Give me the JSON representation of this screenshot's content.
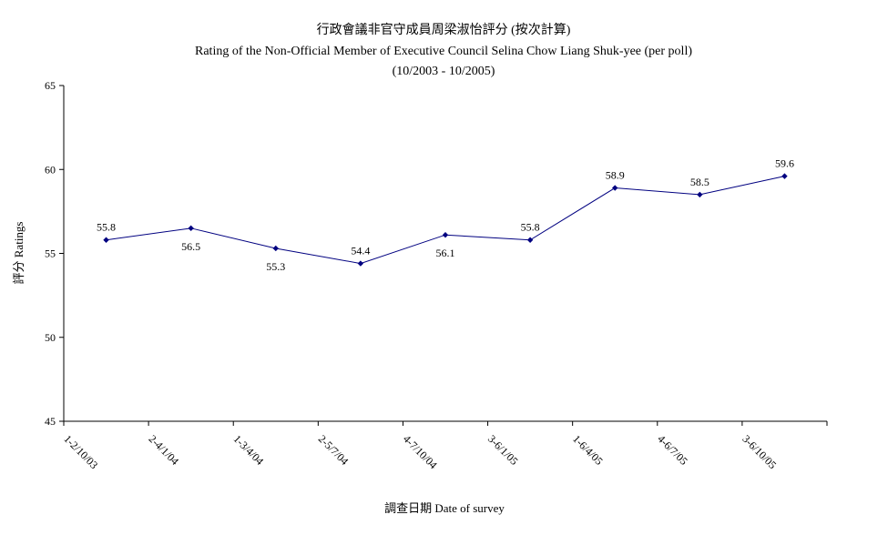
{
  "chart_data": {
    "type": "line",
    "title_lines": [
      "行政會議非官守成員周梁淑怡評分 (按次計算)",
      "Rating of the Non-Official Member of Executive Council Selina Chow Liang Shuk-yee  (per poll)",
      "(10/2003 - 10/2005)"
    ],
    "xlabel": "調查日期 Date of survey",
    "ylabel": "評分 Ratings",
    "ylim": [
      45,
      65
    ],
    "yticks": [
      45,
      50,
      55,
      60,
      65
    ],
    "categories": [
      "1-2/10/03",
      "2-4/1/04",
      "1-3/4/04",
      "2-5/7/04",
      "4-7/10/04",
      "3-6/1/05",
      "1-6/4/05",
      "4-6/7/05",
      "3-6/10/05"
    ],
    "series": [
      {
        "values": [
          55.8,
          56.5,
          55.3,
          54.4,
          56.1,
          55.8,
          58.9,
          58.5,
          59.6
        ],
        "data_labels": [
          "55.8",
          "56.5",
          "55.3",
          "54.4",
          "56.1",
          "55.8",
          "58.9",
          "58.5",
          "59.6"
        ],
        "color": "#000080"
      }
    ],
    "grid": false,
    "legend": "none"
  }
}
